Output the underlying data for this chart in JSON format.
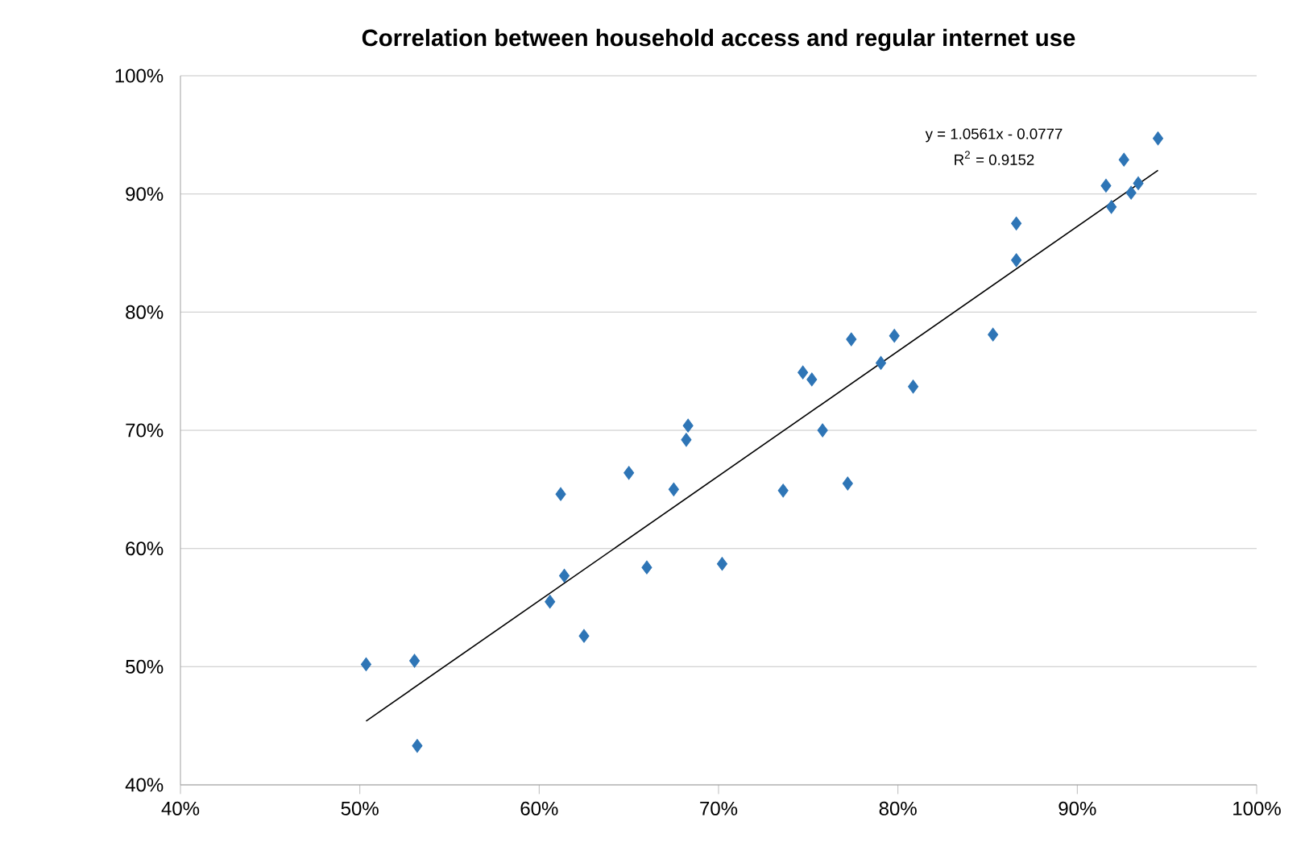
{
  "chart_data": {
    "type": "scatter",
    "title": "Correlation between household access and regular internet use",
    "annotations": [
      "y = 1.0561x - 0.0777",
      "R$^{2}$ = 0.9152"
    ],
    "series": [
      {
        "color": "#2e75b6",
        "marker": "diamond",
        "x": [
          50.35,
          53.05,
          53.2,
          60.6,
          61.2,
          61.4,
          62.5,
          65.0,
          66.0,
          67.5,
          68.2,
          68.3,
          70.2,
          73.6,
          74.7,
          75.2,
          75.8,
          77.2,
          77.4,
          79.05,
          79.8,
          80.85,
          85.3,
          86.6,
          86.6,
          91.6,
          91.9,
          92.6,
          93.0,
          93.4,
          94.5
        ],
        "values": [
          50.2,
          50.5,
          43.3,
          55.5,
          64.6,
          57.7,
          52.6,
          66.4,
          58.4,
          65.0,
          69.2,
          70.4,
          58.7,
          64.9,
          74.9,
          74.3,
          70.0,
          65.5,
          77.7,
          75.7,
          78.0,
          73.7,
          78.1,
          87.5,
          84.4,
          90.7,
          88.9,
          92.9,
          90.1,
          90.9,
          94.7
        ]
      },
      {
        "type": "line",
        "color": "#000000",
        "marker": "none",
        "x": [
          50.35,
          94.5
        ],
        "values": [
          45.4,
          92.0
        ]
      }
    ],
    "xlim": [
      40,
      100
    ],
    "ylim": [
      40,
      100
    ],
    "xticks": [
      {
        "value": 40,
        "label": "40%"
      },
      {
        "value": 50,
        "label": "50%"
      },
      {
        "value": 60,
        "label": "60%"
      },
      {
        "value": 70,
        "label": "70%"
      },
      {
        "value": 80,
        "label": "80%"
      },
      {
        "value": 90,
        "label": "90%"
      },
      {
        "value": 100,
        "label": "100%"
      }
    ],
    "yticks": [
      {
        "value": 40,
        "label": "40%"
      },
      {
        "value": 50,
        "label": "50%"
      },
      {
        "value": 60,
        "label": "60%"
      },
      {
        "value": 70,
        "label": "70%"
      },
      {
        "value": 80,
        "label": "80%"
      },
      {
        "value": 90,
        "label": "90%"
      },
      {
        "value": 100,
        "label": "100%"
      }
    ],
    "grid": "y"
  }
}
